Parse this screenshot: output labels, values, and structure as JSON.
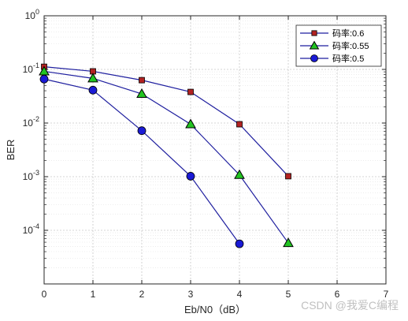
{
  "chart_data": {
    "type": "line",
    "xlabel": "Eb/N0（dB）",
    "ylabel": "BER",
    "xlim": [
      0,
      7
    ],
    "ylim": [
      1e-05,
      1
    ],
    "yscale": "log",
    "grid": true,
    "minor_grid": true,
    "legend_position": "top-right",
    "x_ticks": [
      0,
      1,
      2,
      3,
      4,
      5,
      6,
      7
    ],
    "y_tick_exponents": [
      -4,
      -3,
      -2,
      -1,
      0
    ],
    "line_color": "#1f1f9f",
    "series": [
      {
        "name": "码率:0.6",
        "marker": "square",
        "marker_color": "#b22222",
        "x": [
          0,
          1,
          2,
          3,
          4,
          5
        ],
        "y": [
          0.112,
          0.092,
          0.063,
          0.038,
          0.0095,
          0.00102
        ]
      },
      {
        "name": "码率:0.55",
        "marker": "triangle",
        "marker_color": "#22c422",
        "x": [
          0,
          1,
          2,
          3,
          4,
          5
        ],
        "y": [
          0.092,
          0.068,
          0.035,
          0.0095,
          0.00108,
          5.8e-05
        ]
      },
      {
        "name": "码率:0.5",
        "marker": "circle",
        "marker_color": "#1a1ad6",
        "x": [
          0,
          1,
          2,
          3,
          4
        ],
        "y": [
          0.066,
          0.041,
          0.0072,
          0.00102,
          5.6e-05
        ]
      }
    ]
  },
  "watermark": "CSDN @我爱C编程"
}
